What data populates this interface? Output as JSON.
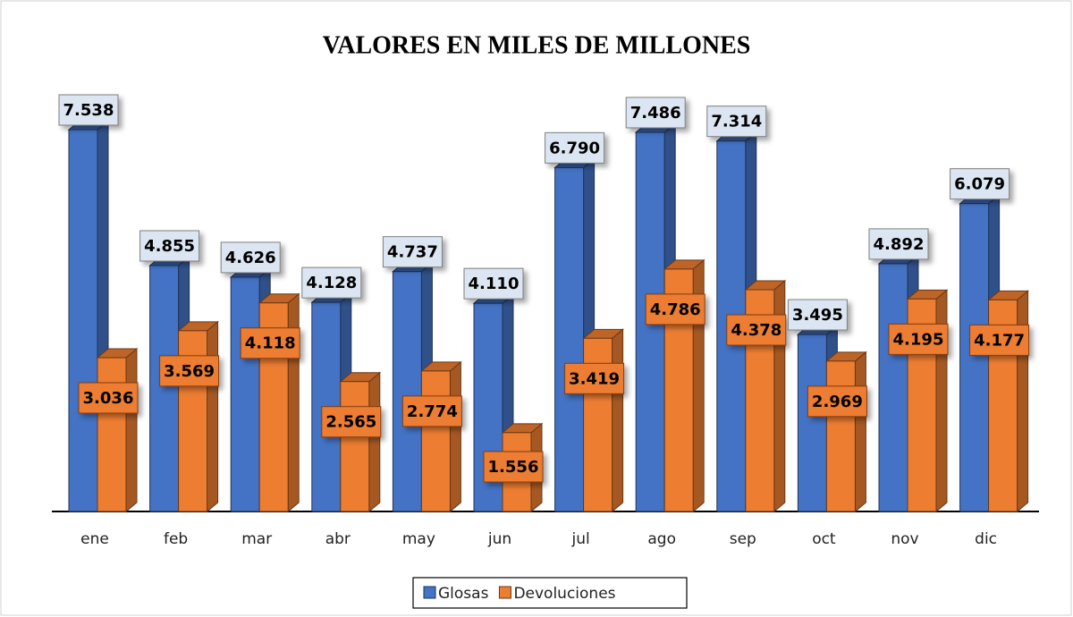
{
  "chart_data": {
    "type": "bar3d",
    "title": "VALORES EN MILES DE MILLONES",
    "categories": [
      "ene",
      "feb",
      "mar",
      "abr",
      "may",
      "jun",
      "jul",
      "ago",
      "sep",
      "oct",
      "nov",
      "dic"
    ],
    "series": [
      {
        "name": "Glosas",
        "color": "#4472c4",
        "values": [
          7.538,
          4.855,
          4.626,
          4.128,
          4.737,
          4.11,
          6.79,
          7.486,
          7.314,
          3.495,
          4.892,
          6.079
        ],
        "value_labels": [
          "7.538",
          "4.855",
          "4.626",
          "4.128",
          "4.737",
          "4.110",
          "6.790",
          "7.486",
          "7.314",
          "3.495",
          "4.892",
          "6.079"
        ]
      },
      {
        "name": "Devoluciones",
        "color": "#ed7d31",
        "values": [
          3.036,
          3.569,
          4.118,
          2.565,
          2.774,
          1.556,
          3.419,
          4.786,
          4.378,
          2.969,
          4.195,
          4.177
        ],
        "value_labels": [
          "3.036",
          "3.569",
          "4.118",
          "2.565",
          "2.774",
          "1.556",
          "3.419",
          "4.786",
          "4.378",
          "2.969",
          "4.195",
          "4.177"
        ]
      }
    ],
    "legend": "bottom"
  }
}
